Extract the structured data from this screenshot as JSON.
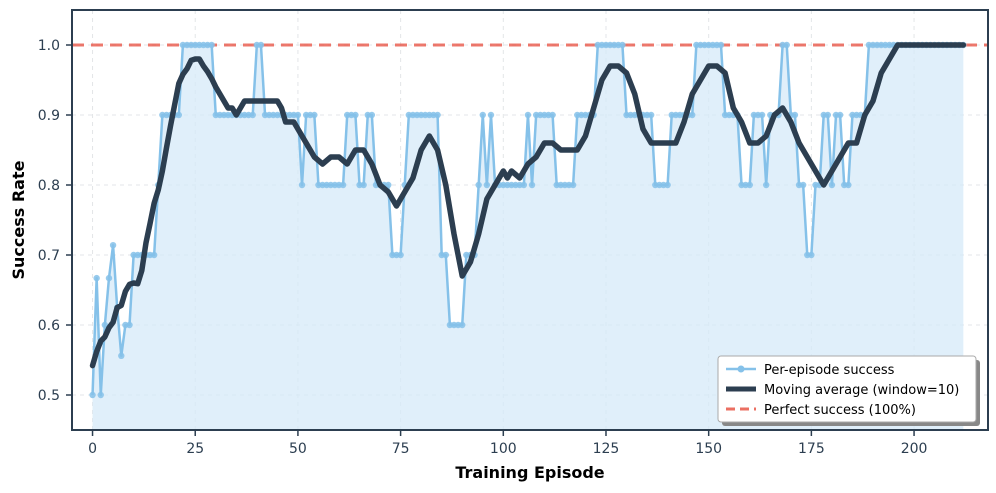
{
  "chart_data": {
    "type": "line",
    "xlabel": "Training Episode",
    "ylabel": "Success Rate",
    "xlim": [
      -5,
      218
    ],
    "ylim": [
      0.45,
      1.05
    ],
    "xticks": [
      0,
      25,
      50,
      75,
      100,
      125,
      150,
      175,
      200
    ],
    "yticks": [
      0.5,
      0.6,
      0.7,
      0.8,
      0.9,
      1.0
    ],
    "xtick_labels": [
      "0",
      "25",
      "50",
      "75",
      "100",
      "125",
      "150",
      "175",
      "200"
    ],
    "ytick_labels": [
      "0.5",
      "0.6",
      "0.7",
      "0.8",
      "0.9",
      "1.0"
    ],
    "grid": true,
    "legend_position": "lower-right",
    "legend": [
      "Per-episode success",
      "Moving average (window=10)",
      "Perfect success (100%)"
    ],
    "colors": {
      "per_episode": "#85c1e9",
      "fill": "#d6eaf8",
      "moving_average": "#2c3e50",
      "reference": "#e74c3c",
      "frame": "#2c3e50"
    },
    "series": [
      {
        "name": "Per-episode success",
        "x_start": 0,
        "values": [
          0.5,
          0.667,
          0.5,
          0.6,
          0.667,
          0.714,
          0.625,
          0.556,
          0.6,
          0.6,
          0.7,
          0.7,
          0.7,
          0.7,
          0.7,
          0.7,
          0.8,
          0.9,
          0.9,
          0.9,
          0.9,
          0.9,
          1.0,
          1.0,
          1.0,
          1.0,
          1.0,
          1.0,
          1.0,
          1.0,
          0.9,
          0.9,
          0.9,
          0.9,
          0.9,
          0.9,
          0.9,
          0.9,
          0.9,
          0.9,
          1.0,
          1.0,
          0.9,
          0.9,
          0.9,
          0.9,
          0.9,
          0.9,
          0.9,
          0.9,
          0.9,
          0.8,
          0.9,
          0.9,
          0.9,
          0.8,
          0.8,
          0.8,
          0.8,
          0.8,
          0.8,
          0.8,
          0.9,
          0.9,
          0.9,
          0.8,
          0.8,
          0.9,
          0.9,
          0.8,
          0.8,
          0.8,
          0.8,
          0.7,
          0.7,
          0.7,
          0.8,
          0.9,
          0.9,
          0.9,
          0.9,
          0.9,
          0.9,
          0.9,
          0.9,
          0.7,
          0.7,
          0.6,
          0.6,
          0.6,
          0.6,
          0.7,
          0.7,
          0.7,
          0.8,
          0.9,
          0.8,
          0.9,
          0.8,
          0.8,
          0.8,
          0.8,
          0.8,
          0.8,
          0.8,
          0.8,
          0.9,
          0.8,
          0.9,
          0.9,
          0.9,
          0.9,
          0.9,
          0.8,
          0.8,
          0.8,
          0.8,
          0.8,
          0.9,
          0.9,
          0.9,
          0.9,
          0.9,
          1.0,
          1.0,
          1.0,
          1.0,
          1.0,
          1.0,
          1.0,
          0.9,
          0.9,
          0.9,
          0.9,
          0.9,
          0.9,
          0.9,
          0.8,
          0.8,
          0.8,
          0.8,
          0.9,
          0.9,
          0.9,
          0.9,
          0.9,
          0.9,
          1.0,
          1.0,
          1.0,
          1.0,
          1.0,
          1.0,
          1.0,
          0.9,
          0.9,
          0.9,
          0.9,
          0.8,
          0.8,
          0.8,
          0.9,
          0.9,
          0.9,
          0.8,
          0.9,
          0.9,
          0.9,
          1.0,
          1.0,
          0.9,
          0.9,
          0.8,
          0.8,
          0.7,
          0.7,
          0.8,
          0.8,
          0.9,
          0.9,
          0.8,
          0.9,
          0.9,
          0.8,
          0.8,
          0.9,
          0.9,
          0.9,
          0.9,
          1.0,
          1.0,
          1.0,
          1.0,
          1.0,
          1.0,
          1.0,
          1.0,
          1.0,
          1.0,
          1.0,
          1.0,
          1.0,
          1.0,
          1.0,
          1.0,
          1.0,
          1.0,
          1.0,
          1.0,
          1.0,
          1.0,
          1.0,
          1.0
        ]
      },
      {
        "name": "Moving average (window=10)",
        "x": [
          0,
          1,
          2,
          3,
          4,
          5,
          6,
          7,
          8,
          9,
          10,
          11,
          12,
          13,
          14,
          15,
          16,
          17,
          18,
          19,
          20,
          21,
          22,
          23,
          24,
          25,
          26,
          27,
          28,
          29,
          30,
          31,
          32,
          33,
          34,
          35,
          36,
          37,
          38,
          39,
          40,
          41,
          42,
          43,
          44,
          45,
          46,
          47,
          48,
          49,
          50,
          52,
          54,
          56,
          58,
          60,
          62,
          64,
          66,
          68,
          70,
          72,
          74,
          76,
          78,
          80,
          82,
          84,
          86,
          88,
          89,
          90,
          92,
          94,
          96,
          98,
          100,
          101,
          102,
          104,
          106,
          108,
          110,
          112,
          114,
          116,
          118,
          120,
          122,
          124,
          126,
          128,
          130,
          132,
          134,
          136,
          138,
          140,
          142,
          144,
          146,
          148,
          150,
          152,
          154,
          156,
          158,
          160,
          162,
          164,
          166,
          168,
          170,
          172,
          174,
          176,
          178,
          180,
          182,
          184,
          186,
          188,
          190,
          192,
          194,
          196,
          198,
          200,
          202,
          204,
          206,
          208,
          210,
          212
        ],
        "values": [
          0.542,
          0.562,
          0.577,
          0.583,
          0.596,
          0.604,
          0.625,
          0.628,
          0.648,
          0.658,
          0.66,
          0.659,
          0.678,
          0.717,
          0.745,
          0.774,
          0.793,
          0.82,
          0.853,
          0.885,
          0.915,
          0.945,
          0.958,
          0.966,
          0.978,
          0.98,
          0.98,
          0.97,
          0.962,
          0.952,
          0.94,
          0.93,
          0.92,
          0.91,
          0.91,
          0.9,
          0.91,
          0.92,
          0.92,
          0.92,
          0.92,
          0.92,
          0.92,
          0.92,
          0.92,
          0.92,
          0.91,
          0.89,
          0.89,
          0.89,
          0.88,
          0.86,
          0.84,
          0.83,
          0.84,
          0.84,
          0.83,
          0.85,
          0.85,
          0.83,
          0.8,
          0.79,
          0.77,
          0.79,
          0.81,
          0.85,
          0.87,
          0.85,
          0.8,
          0.73,
          0.7,
          0.67,
          0.69,
          0.73,
          0.78,
          0.8,
          0.82,
          0.81,
          0.82,
          0.81,
          0.83,
          0.84,
          0.86,
          0.86,
          0.85,
          0.85,
          0.85,
          0.87,
          0.91,
          0.95,
          0.97,
          0.97,
          0.96,
          0.93,
          0.88,
          0.86,
          0.86,
          0.86,
          0.86,
          0.89,
          0.93,
          0.95,
          0.97,
          0.97,
          0.96,
          0.91,
          0.89,
          0.86,
          0.86,
          0.87,
          0.9,
          0.91,
          0.89,
          0.86,
          0.84,
          0.82,
          0.8,
          0.82,
          0.84,
          0.86,
          0.86,
          0.9,
          0.92,
          0.96,
          0.98,
          1.0,
          1.0,
          1.0,
          1.0,
          1.0,
          1.0,
          1.0,
          1.0,
          1.0
        ]
      },
      {
        "name": "Perfect success (100%)",
        "type": "hline",
        "y": 1.0
      }
    ]
  }
}
